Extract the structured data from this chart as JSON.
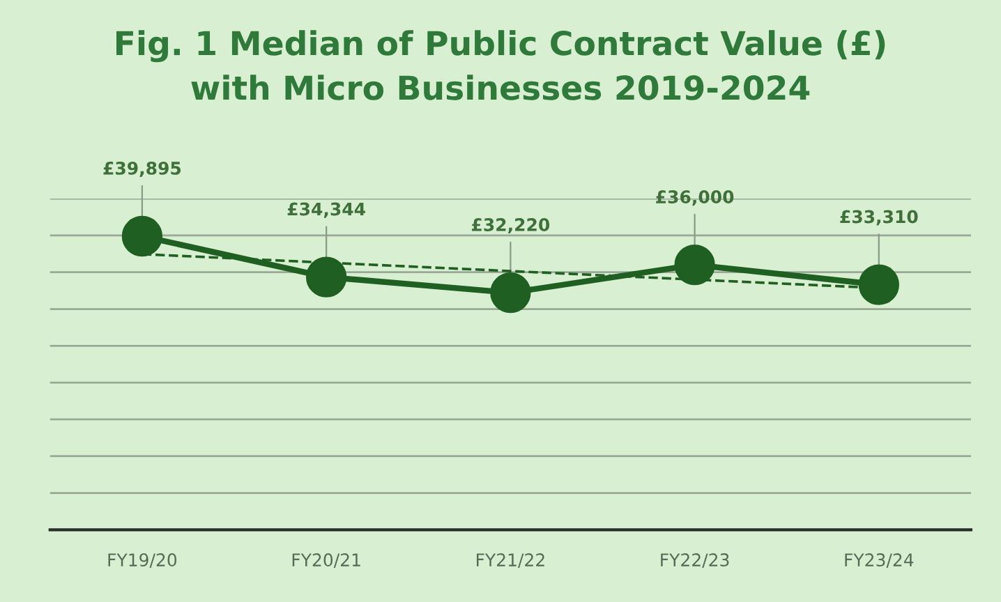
{
  "chart_data": {
    "type": "line",
    "title": "Fig. 1 Median of Public Contract Value (£)\nwith Micro Businesses 2019-2024",
    "categories": [
      "FY19/20",
      "FY20/21",
      "FY21/22",
      "FY22/23",
      "FY23/24"
    ],
    "series": [
      {
        "color": "#1f5f22",
        "values": [
          39895,
          34344,
          32220,
          36000,
          33310
        ],
        "value_labels": [
          "£39,895",
          "£34,344",
          "£32,220",
          "£36,000",
          "£33,310"
        ],
        "marker": "circle",
        "line_style": "solid"
      },
      {
        "type": "line",
        "color": "#1f5f22",
        "values": [
          37456,
          36305,
          35154,
          34003,
          32851
        ],
        "marker": "none",
        "line_style": "dashed"
      }
    ],
    "ylim": [
      0,
      45000
    ],
    "yticks": [
      {
        "value": 0,
        "label": null
      },
      {
        "value": 5000,
        "label": null
      },
      {
        "value": 10000,
        "label": null
      },
      {
        "value": 15000,
        "label": null
      },
      {
        "value": 20000,
        "label": null
      },
      {
        "value": 25000,
        "label": null
      },
      {
        "value": 30000,
        "label": null
      },
      {
        "value": 35000,
        "label": null
      },
      {
        "value": 40000,
        "label": null
      },
      {
        "value": 45000,
        "label": null
      }
    ],
    "grid": "y",
    "tick_labels": "x",
    "legend": false
  }
}
